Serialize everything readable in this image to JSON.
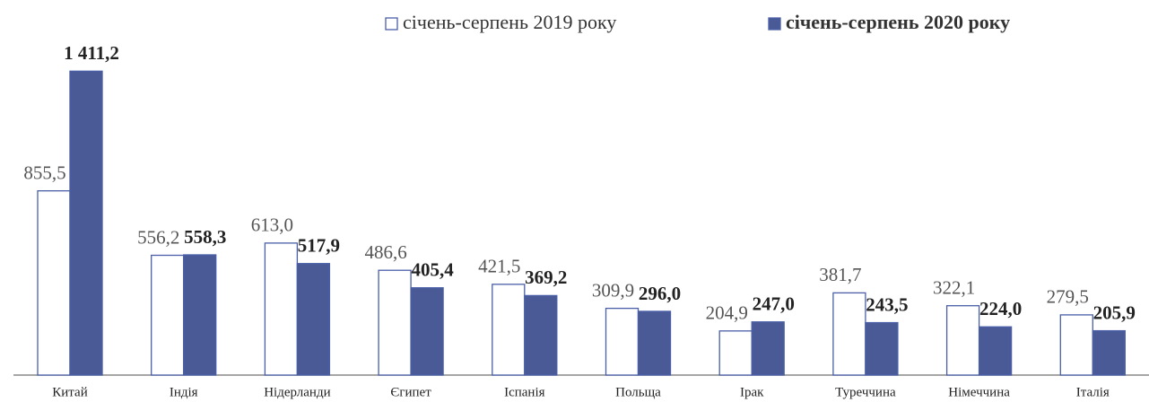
{
  "chart_data": {
    "type": "bar",
    "categories": [
      "Китай",
      "Індія",
      "Нідерланди",
      "Єгипет",
      "Іспанія",
      "Польща",
      "Ірак",
      "Туреччина",
      "Німеччина",
      "Італія"
    ],
    "series": [
      {
        "name": "січень-серпень 2019 року",
        "color": "#ffffff",
        "values": [
          855.5,
          556.2,
          613.0,
          486.6,
          421.5,
          309.9,
          204.9,
          381.7,
          322.1,
          279.5
        ],
        "value_labels": [
          "855,5",
          "556,2",
          "613,0",
          "486,6",
          "421,5",
          "309,9",
          "204,9",
          "381,7",
          "322,1",
          "279,5"
        ]
      },
      {
        "name": "січень-серпень 2020 року",
        "color": "#4a5a96",
        "values": [
          1411.2,
          558.3,
          517.9,
          405.4,
          369.2,
          296.0,
          247.0,
          243.5,
          224.0,
          205.9
        ],
        "value_labels": [
          "1 411,2",
          "558,3",
          "517,9",
          "405,4",
          "369,2",
          "296,0",
          "247,0",
          "243,5",
          "224,0",
          "205,9"
        ]
      }
    ],
    "ylim": [
      0,
      1500
    ]
  }
}
